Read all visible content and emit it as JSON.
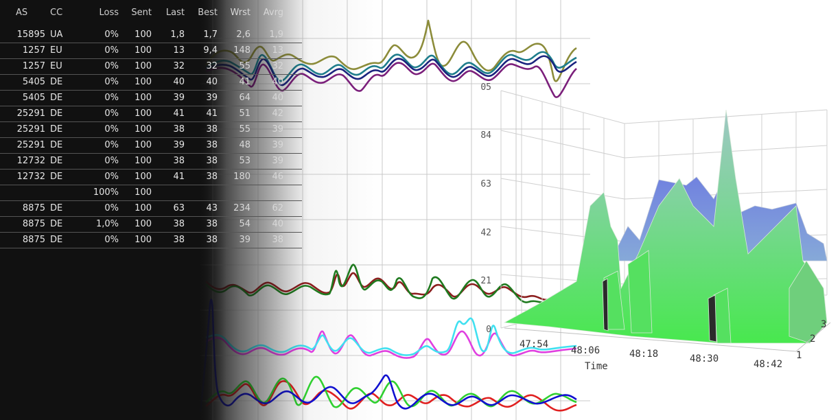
{
  "table": {
    "headers": {
      "as": "AS",
      "cc": "CC",
      "loss": "Loss",
      "sent": "Sent",
      "last": "Last",
      "best": "Best",
      "wrst": "Wrst",
      "avrg": "Avrg"
    },
    "rows": [
      {
        "as": "15895",
        "cc": "UA",
        "loss": "0%",
        "sent": "100",
        "last": "1,8",
        "best": "1,7",
        "wrst": "2,6",
        "avrg": "1,9"
      },
      {
        "as": "1257",
        "cc": "EU",
        "loss": "0%",
        "sent": "100",
        "last": "13",
        "best": "9,4",
        "wrst": "148",
        "avrg": "13"
      },
      {
        "as": "1257",
        "cc": "EU",
        "loss": "0%",
        "sent": "100",
        "last": "32",
        "best": "32",
        "wrst": "55",
        "avrg": "32"
      },
      {
        "as": "5405",
        "cc": "DE",
        "loss": "0%",
        "sent": "100",
        "last": "40",
        "best": "40",
        "wrst": "41",
        "avrg": "40"
      },
      {
        "as": "5405",
        "cc": "DE",
        "loss": "0%",
        "sent": "100",
        "last": "39",
        "best": "39",
        "wrst": "64",
        "avrg": "40"
      },
      {
        "as": "25291",
        "cc": "DE",
        "loss": "0%",
        "sent": "100",
        "last": "41",
        "best": "41",
        "wrst": "51",
        "avrg": "42"
      },
      {
        "as": "25291",
        "cc": "DE",
        "loss": "0%",
        "sent": "100",
        "last": "38",
        "best": "38",
        "wrst": "55",
        "avrg": "39"
      },
      {
        "as": "25291",
        "cc": "DE",
        "loss": "0%",
        "sent": "100",
        "last": "39",
        "best": "38",
        "wrst": "48",
        "avrg": "39"
      },
      {
        "as": "12732",
        "cc": "DE",
        "loss": "0%",
        "sent": "100",
        "last": "38",
        "best": "38",
        "wrst": "53",
        "avrg": "39"
      },
      {
        "as": "12732",
        "cc": "DE",
        "loss": "0%",
        "sent": "100",
        "last": "41",
        "best": "38",
        "wrst": "180",
        "avrg": "46"
      },
      {
        "as": "",
        "cc": "",
        "loss": "100%",
        "sent": "100",
        "last": "",
        "best": "",
        "wrst": "",
        "avrg": ""
      },
      {
        "as": "8875",
        "cc": "DE",
        "loss": "0%",
        "sent": "100",
        "last": "63",
        "best": "43",
        "wrst": "234",
        "avrg": "62"
      },
      {
        "as": "8875",
        "cc": "DE",
        "loss": "1,0%",
        "sent": "100",
        "last": "38",
        "best": "38",
        "wrst": "54",
        "avrg": "40"
      },
      {
        "as": "8875",
        "cc": "DE",
        "loss": "0%",
        "sent": "100",
        "last": "38",
        "best": "38",
        "wrst": "39",
        "avrg": "38"
      }
    ]
  },
  "plot3d": {
    "z_ticks": [
      "105",
      "84",
      "63",
      "42",
      "21",
      "0"
    ],
    "time_ticks": [
      "47:54",
      "48:06",
      "48:18",
      "48:30",
      "48:42"
    ],
    "time_label": "Time",
    "depth_ticks": [
      "1",
      "2",
      "3"
    ]
  },
  "colors": {
    "olive": "#8c8c3a",
    "teal": "#1e7d8c",
    "navy": "#1a237e",
    "purple": "#7b1f7b",
    "green_dark": "#1f7a1f",
    "maroon": "#8b1e1e",
    "magenta": "#e040e0",
    "cyan": "#40e0f0",
    "blue": "#1010d0",
    "green": "#30d030",
    "red": "#e02020",
    "surface_green": "#4ee05a",
    "surface_blue": "#7f8fe0"
  }
}
